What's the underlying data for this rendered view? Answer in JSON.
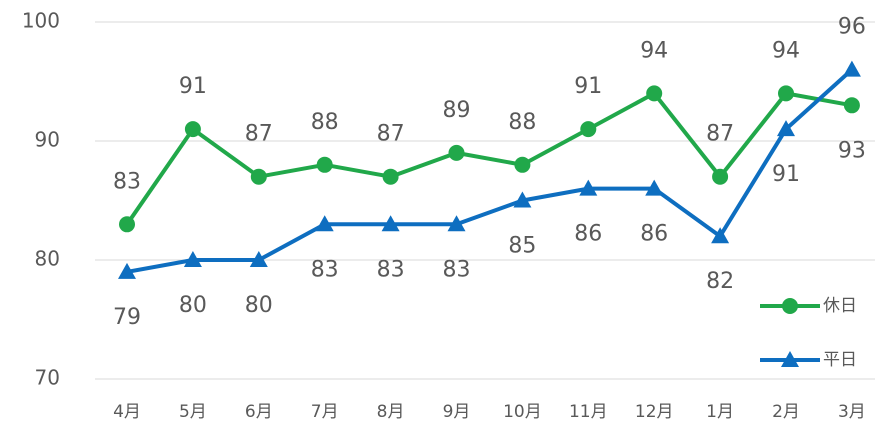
{
  "chart_data": {
    "type": "line",
    "categories": [
      "4月",
      "5月",
      "6月",
      "7月",
      "8月",
      "9月",
      "10月",
      "11月",
      "12月",
      "1月",
      "2月",
      "3月"
    ],
    "series": [
      {
        "name": "休日",
        "color": "#21a84a",
        "marker": "circle",
        "values": [
          83,
          91,
          87,
          88,
          87,
          89,
          88,
          91,
          94,
          87,
          94,
          93
        ]
      },
      {
        "name": "平日",
        "color": "#0e6ec0",
        "marker": "triangle",
        "values": [
          79,
          80,
          80,
          83,
          83,
          83,
          85,
          86,
          86,
          82,
          91,
          96
        ]
      }
    ],
    "ylim": [
      70,
      100
    ],
    "yticks": [
      70,
      80,
      90,
      100
    ],
    "grid": true,
    "legend": "lower right"
  }
}
